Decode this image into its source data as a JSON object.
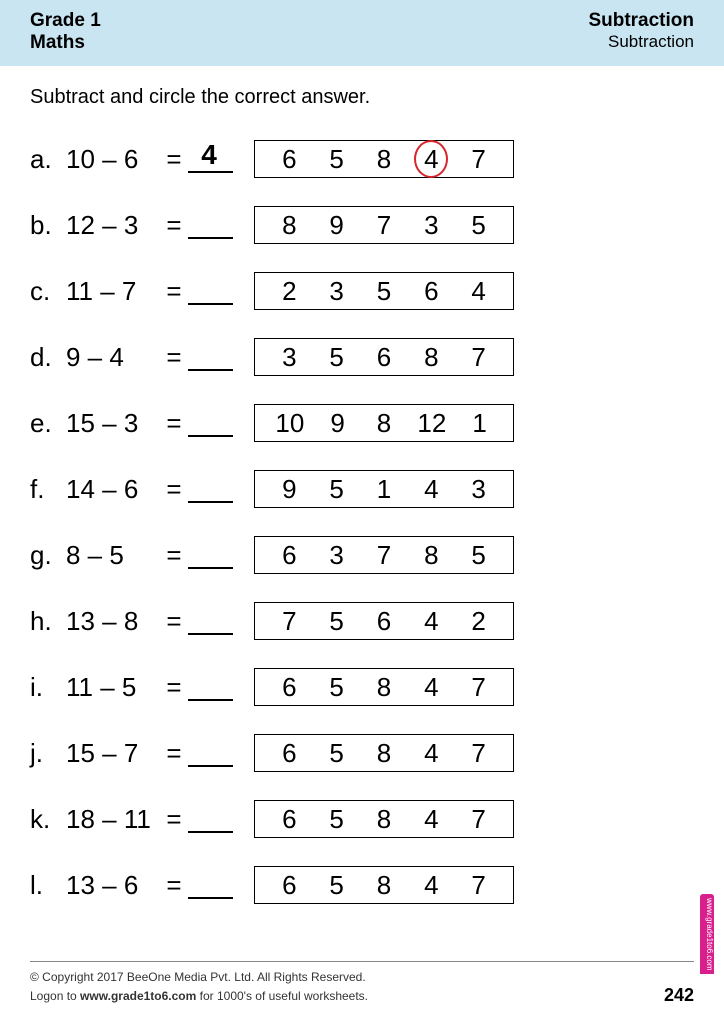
{
  "header": {
    "grade": "Grade 1",
    "subject": "Maths",
    "topic": "Subtraction",
    "subtopic": "Subtraction"
  },
  "instruction": "Subtract and circle the correct answer.",
  "colors": {
    "header_bg": "#c9e5f2",
    "circle_border": "#d8242b",
    "side_tab": "#d91f8c"
  },
  "typography": {
    "body_font": "Comic Sans MS, Arial Rounded MT, Arial, sans-serif",
    "header_font": "Arial, Helvetica, sans-serif",
    "instruction_size": 20,
    "problem_size": 26,
    "answer_size": 28,
    "footer_size": 12,
    "page_num_size": 18
  },
  "problems": [
    {
      "letter": "a.",
      "a": 10,
      "b": 6,
      "answer": "4",
      "choices": [
        "6",
        "5",
        "8",
        "4",
        "7"
      ],
      "circled_index": 3
    },
    {
      "letter": "b.",
      "a": 12,
      "b": 3,
      "answer": "",
      "choices": [
        "8",
        "9",
        "7",
        "3",
        "5"
      ],
      "circled_index": null
    },
    {
      "letter": "c.",
      "a": 11,
      "b": 7,
      "answer": "",
      "choices": [
        "2",
        "3",
        "5",
        "6",
        "4"
      ],
      "circled_index": null
    },
    {
      "letter": "d.",
      "a": 9,
      "b": 4,
      "answer": "",
      "choices": [
        "3",
        "5",
        "6",
        "8",
        "7"
      ],
      "circled_index": null
    },
    {
      "letter": "e.",
      "a": 15,
      "b": 3,
      "answer": "",
      "choices": [
        "10",
        "9",
        "8",
        "12",
        "1"
      ],
      "circled_index": null
    },
    {
      "letter": "f.",
      "a": 14,
      "b": 6,
      "answer": "",
      "choices": [
        "9",
        "5",
        "1",
        "4",
        "3"
      ],
      "circled_index": null
    },
    {
      "letter": "g.",
      "a": 8,
      "b": 5,
      "answer": "",
      "choices": [
        "6",
        "3",
        "7",
        "8",
        "5"
      ],
      "circled_index": null
    },
    {
      "letter": "h.",
      "a": 13,
      "b": 8,
      "answer": "",
      "choices": [
        "7",
        "5",
        "6",
        "4",
        "2"
      ],
      "circled_index": null
    },
    {
      "letter": "i.",
      "a": 11,
      "b": 5,
      "answer": "",
      "choices": [
        "6",
        "5",
        "8",
        "4",
        "7"
      ],
      "circled_index": null
    },
    {
      "letter": "j.",
      "a": 15,
      "b": 7,
      "answer": "",
      "choices": [
        "6",
        "5",
        "8",
        "4",
        "7"
      ],
      "circled_index": null
    },
    {
      "letter": "k.",
      "a": 18,
      "b": 11,
      "answer": "",
      "choices": [
        "6",
        "5",
        "8",
        "4",
        "7"
      ],
      "circled_index": null
    },
    {
      "letter": "l.",
      "a": 13,
      "b": 6,
      "answer": "",
      "choices": [
        "6",
        "5",
        "8",
        "4",
        "7"
      ],
      "circled_index": null
    }
  ],
  "footer": {
    "copyright": "© Copyright 2017 BeeOne Media Pvt. Ltd. All Rights Reserved.",
    "logon_prefix": "Logon to ",
    "url": "www.grade1to6.com",
    "logon_suffix": " for 1000's of useful worksheets.",
    "page_number": "242",
    "side_tab": "www.grade1to6.com"
  }
}
